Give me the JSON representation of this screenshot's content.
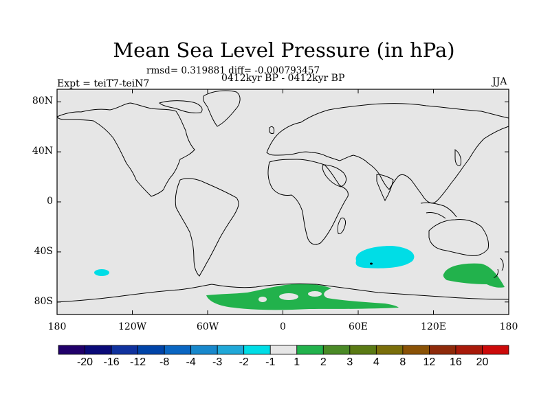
{
  "title": "Mean Sea Level Pressure (in hPa)",
  "stats": "rmsd= 0.319881 diff= -0.000793457",
  "period": "0412kyr BP - 0412kyr BP",
  "experiment": "Expt = teiT7-teiN7",
  "season": "JJA",
  "map": {
    "background_color": "#e6e6e6",
    "lon_range": [
      -180,
      180
    ],
    "lat_range": [
      -90,
      90
    ],
    "lat_ticks": [
      {
        "value": 80,
        "label": "80N"
      },
      {
        "value": 40,
        "label": "40N"
      },
      {
        "value": 0,
        "label": "0"
      },
      {
        "value": -40,
        "label": "40S"
      },
      {
        "value": -80,
        "label": "80S"
      }
    ],
    "lon_ticks": [
      {
        "value": -180,
        "label": "180"
      },
      {
        "value": -120,
        "label": "120W"
      },
      {
        "value": -60,
        "label": "60W"
      },
      {
        "value": 0,
        "label": "0"
      },
      {
        "value": 60,
        "label": "60E"
      },
      {
        "value": 120,
        "label": "120E"
      },
      {
        "value": 180,
        "label": "180"
      }
    ],
    "anomaly_regions": [
      {
        "name": "south-pacific-negative",
        "level": "-2 to -1",
        "color": "#00dde6",
        "lon": -143,
        "lat": -54
      },
      {
        "name": "south-indian-ocean-negative",
        "level": "-2 to -1",
        "color": "#00dde6",
        "lon": 67,
        "lat": -45
      },
      {
        "name": "south-of-australia-positive",
        "level": "1 to 2",
        "color": "#22b24c",
        "lon": 152,
        "lat": -61
      },
      {
        "name": "antarctic-coast-positive",
        "level": "1 to 2",
        "color": "#22b24c",
        "lon": 30,
        "lat": -78
      }
    ]
  },
  "colorbar": {
    "colors": [
      "#21006a",
      "#0a0a78",
      "#10329e",
      "#0044a8",
      "#0a66c2",
      "#1888cc",
      "#20a8d8",
      "#00dde6",
      "#e6e6e6",
      "#22b24c",
      "#4a8a26",
      "#5a7a14",
      "#7a6e0a",
      "#8a5206",
      "#8e2a0a",
      "#a81a0a",
      "#cc0a0a"
    ],
    "labels": [
      "-20",
      "-16",
      "-12",
      "-8",
      "-4",
      "-3",
      "-2",
      "-1",
      "1",
      "2",
      "3",
      "4",
      "8",
      "12",
      "16",
      "20"
    ]
  }
}
